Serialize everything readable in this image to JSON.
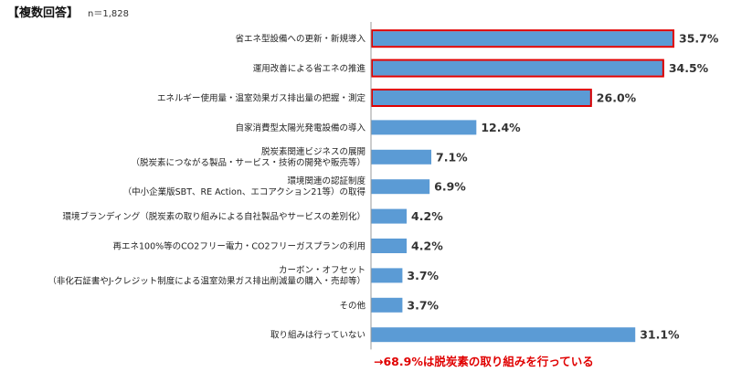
{
  "header": {
    "title": "【複数回答】",
    "sample_size": "n＝1,828"
  },
  "colors": {
    "bar": "#5b9bd5",
    "highlight_border": "#e00000",
    "note": "#e00000",
    "axis": "#999999"
  },
  "note_text": "→68.9%は脱炭素の取り組みを行っている",
  "chart_data": {
    "type": "bar",
    "orientation": "horizontal",
    "unit": "%",
    "xlim": [
      0,
      40
    ],
    "grid": false,
    "legend": "none",
    "categories": [
      [
        "省エネ型設備への更新・新規導入"
      ],
      [
        "運用改善による省エネの推進"
      ],
      [
        "エネルギー使用量・温室効果ガス排出量の把握・測定"
      ],
      [
        "自家消費型太陽光発電設備の導入"
      ],
      [
        "脱炭素関連ビジネスの展開",
        "（脱炭素につながる製品・サービス・技術の開発や販売等）"
      ],
      [
        "環境関連の認証制度",
        "（中小企業版SBT、RE Action、エコアクション21等）の取得"
      ],
      [
        "環境ブランディング（脱炭素の取り組みによる自社製品やサービスの差別化）"
      ],
      [
        "再エネ100%等のCO2フリー電力・CO2フリーガスプランの利用"
      ],
      [
        "カーボン・オフセット",
        "（非化石証書やJ-クレジット制度による温室効果ガス排出削減量の購入・売却等）"
      ],
      [
        "その他"
      ],
      [
        "取り組みは行っていない"
      ]
    ],
    "values": [
      35.7,
      34.5,
      26.0,
      12.4,
      7.1,
      6.9,
      4.2,
      4.2,
      3.7,
      3.7,
      31.1
    ],
    "value_labels": [
      "35.7%",
      "34.5%",
      "26.0%",
      "12.4%",
      "7.1%",
      "6.9%",
      "4.2%",
      "4.2%",
      "3.7%",
      "3.7%",
      "31.1%"
    ],
    "highlighted": [
      true,
      true,
      true,
      false,
      false,
      false,
      false,
      false,
      false,
      false,
      false
    ]
  }
}
